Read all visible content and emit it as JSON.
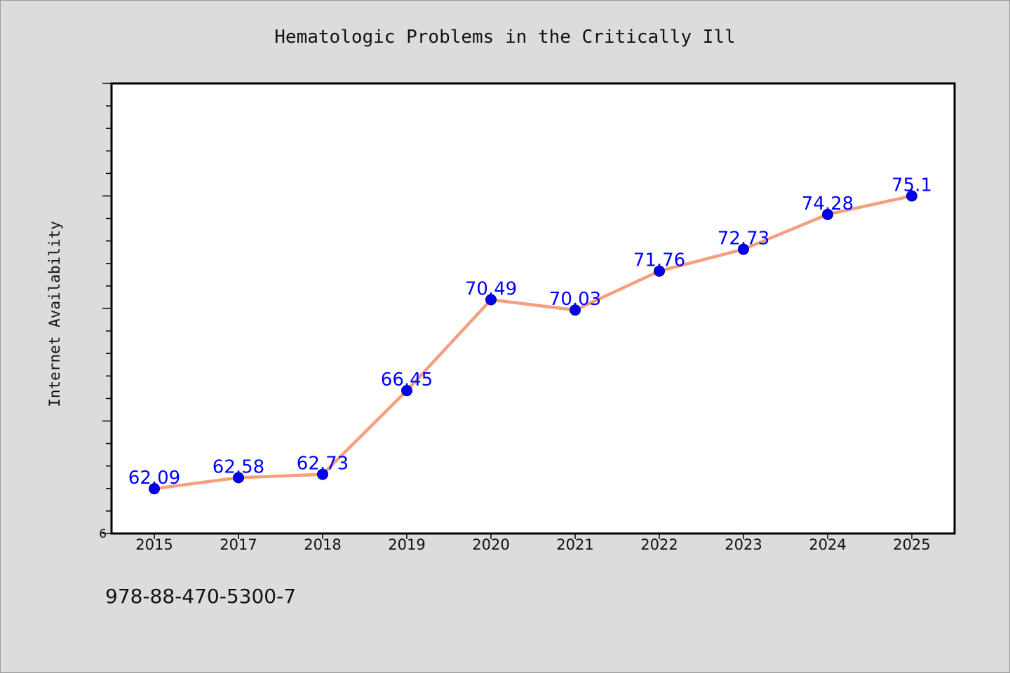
{
  "colors": {
    "background": "#dcdcdc",
    "plot_background": "#ffffff",
    "line": "#f4a07e",
    "marker": "#0000ee",
    "data_label": "#0000ff",
    "axis": "#000000"
  },
  "chart_data": {
    "type": "line",
    "title": "Hematologic Problems in the Critically Ill",
    "xlabel": "",
    "ylabel": "Internet Availability",
    "categories": [
      "2015",
      "2017",
      "2018",
      "2019",
      "2020",
      "2021",
      "2022",
      "2023",
      "2024",
      "2025"
    ],
    "series": [
      {
        "values": [
          62.09,
          62.58,
          62.73,
          66.45,
          70.49,
          70.03,
          71.76,
          72.73,
          74.28,
          75.1
        ]
      }
    ],
    "data_labels": [
      "62.09",
      "62.58",
      "62.73",
      "66.45",
      "70.49",
      "70.03",
      "71.76",
      "72.73",
      "74.28",
      "75.1"
    ],
    "ylim": [
      60.1,
      80.1
    ],
    "ytick_step": 1,
    "yticklabels_shown": [
      "6"
    ],
    "grid": false,
    "legend": "none"
  },
  "footer": {
    "text": "978-88-470-5300-7"
  }
}
